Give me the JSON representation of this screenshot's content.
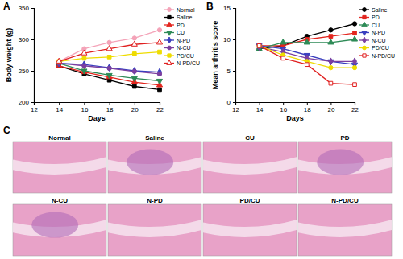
{
  "chart_data": [
    {
      "type": "line",
      "title": "A",
      "x": [
        14,
        16,
        18,
        20,
        22
      ],
      "x_label": "Days",
      "y_label": "Body weight (g)",
      "xlim": [
        12,
        22
      ],
      "xticks": [
        12,
        14,
        16,
        18,
        20,
        22
      ],
      "ylim": [
        200,
        350
      ],
      "yticks": [
        200,
        250,
        300,
        350
      ],
      "legend": "right",
      "series": [
        {
          "name": "Normal",
          "color": "#f4a3b8",
          "marker": "circle",
          "values": [
            265,
            285,
            295,
            302,
            315
          ]
        },
        {
          "name": "Saline",
          "color": "#000000",
          "marker": "square",
          "values": [
            258,
            245,
            235,
            225,
            220
          ]
        },
        {
          "name": "PD",
          "color": "#e3261f",
          "marker": "triangle",
          "values": [
            258,
            248,
            240,
            232,
            227
          ]
        },
        {
          "name": "CU",
          "color": "#2e8b57",
          "marker": "triangle-down",
          "values": [
            262,
            250,
            243,
            238,
            234
          ]
        },
        {
          "name": "N-PD",
          "color": "#3a3fbf",
          "marker": "diamond",
          "values": [
            262,
            260,
            255,
            250,
            248
          ]
        },
        {
          "name": "N-CU",
          "color": "#7a3fa0",
          "marker": "circle",
          "values": [
            262,
            258,
            254,
            249,
            245
          ]
        },
        {
          "name": "PD/CU",
          "color": "#eedc00",
          "marker": "square",
          "values": [
            265,
            270,
            272,
            277,
            280
          ]
        },
        {
          "name": "N-PD/CU",
          "color": "#e02020",
          "marker": "open-triangle",
          "values": [
            265,
            278,
            285,
            292,
            295
          ]
        }
      ]
    },
    {
      "type": "line",
      "title": "B",
      "x": [
        14,
        16,
        18,
        20,
        22
      ],
      "x_label": "Days",
      "y_label": "Mean arthritis score",
      "xlim": [
        12,
        22
      ],
      "xticks": [
        12,
        14,
        16,
        18,
        20,
        22
      ],
      "ylim": [
        0,
        15
      ],
      "yticks": [
        0,
        5,
        10,
        15
      ],
      "legend": "right",
      "series": [
        {
          "name": "Saline",
          "color": "#000000",
          "marker": "circle",
          "values": [
            8.5,
            9,
            10.5,
            11.5,
            12.5
          ]
        },
        {
          "name": "PD",
          "color": "#e3261f",
          "marker": "square",
          "values": [
            9,
            9,
            10,
            10.5,
            11
          ]
        },
        {
          "name": "CU",
          "color": "#2e8b57",
          "marker": "triangle",
          "values": [
            8.5,
            9.5,
            9.5,
            9.5,
            10
          ]
        },
        {
          "name": "N-PD",
          "color": "#3a3fbf",
          "marker": "triangle-down",
          "values": [
            9,
            8.5,
            7.5,
            6.5,
            6
          ]
        },
        {
          "name": "N-CU",
          "color": "#7a3fa0",
          "marker": "diamond",
          "values": [
            8.8,
            8,
            7,
            6.5,
            6.5
          ]
        },
        {
          "name": "PD/CU",
          "color": "#eedc00",
          "marker": "circle",
          "values": [
            9,
            7.5,
            6.5,
            5.5,
            5.5
          ]
        },
        {
          "name": "N-PD/CU",
          "color": "#e02020",
          "marker": "open-square",
          "values": [
            9,
            7,
            6,
            3,
            2.8
          ]
        }
      ]
    }
  ],
  "panel_c": {
    "label": "C",
    "images": [
      "Normal",
      "Saline",
      "CU",
      "PD",
      "N-CU",
      "N-PD",
      "PD/CU",
      "N-PD/CU"
    ]
  }
}
